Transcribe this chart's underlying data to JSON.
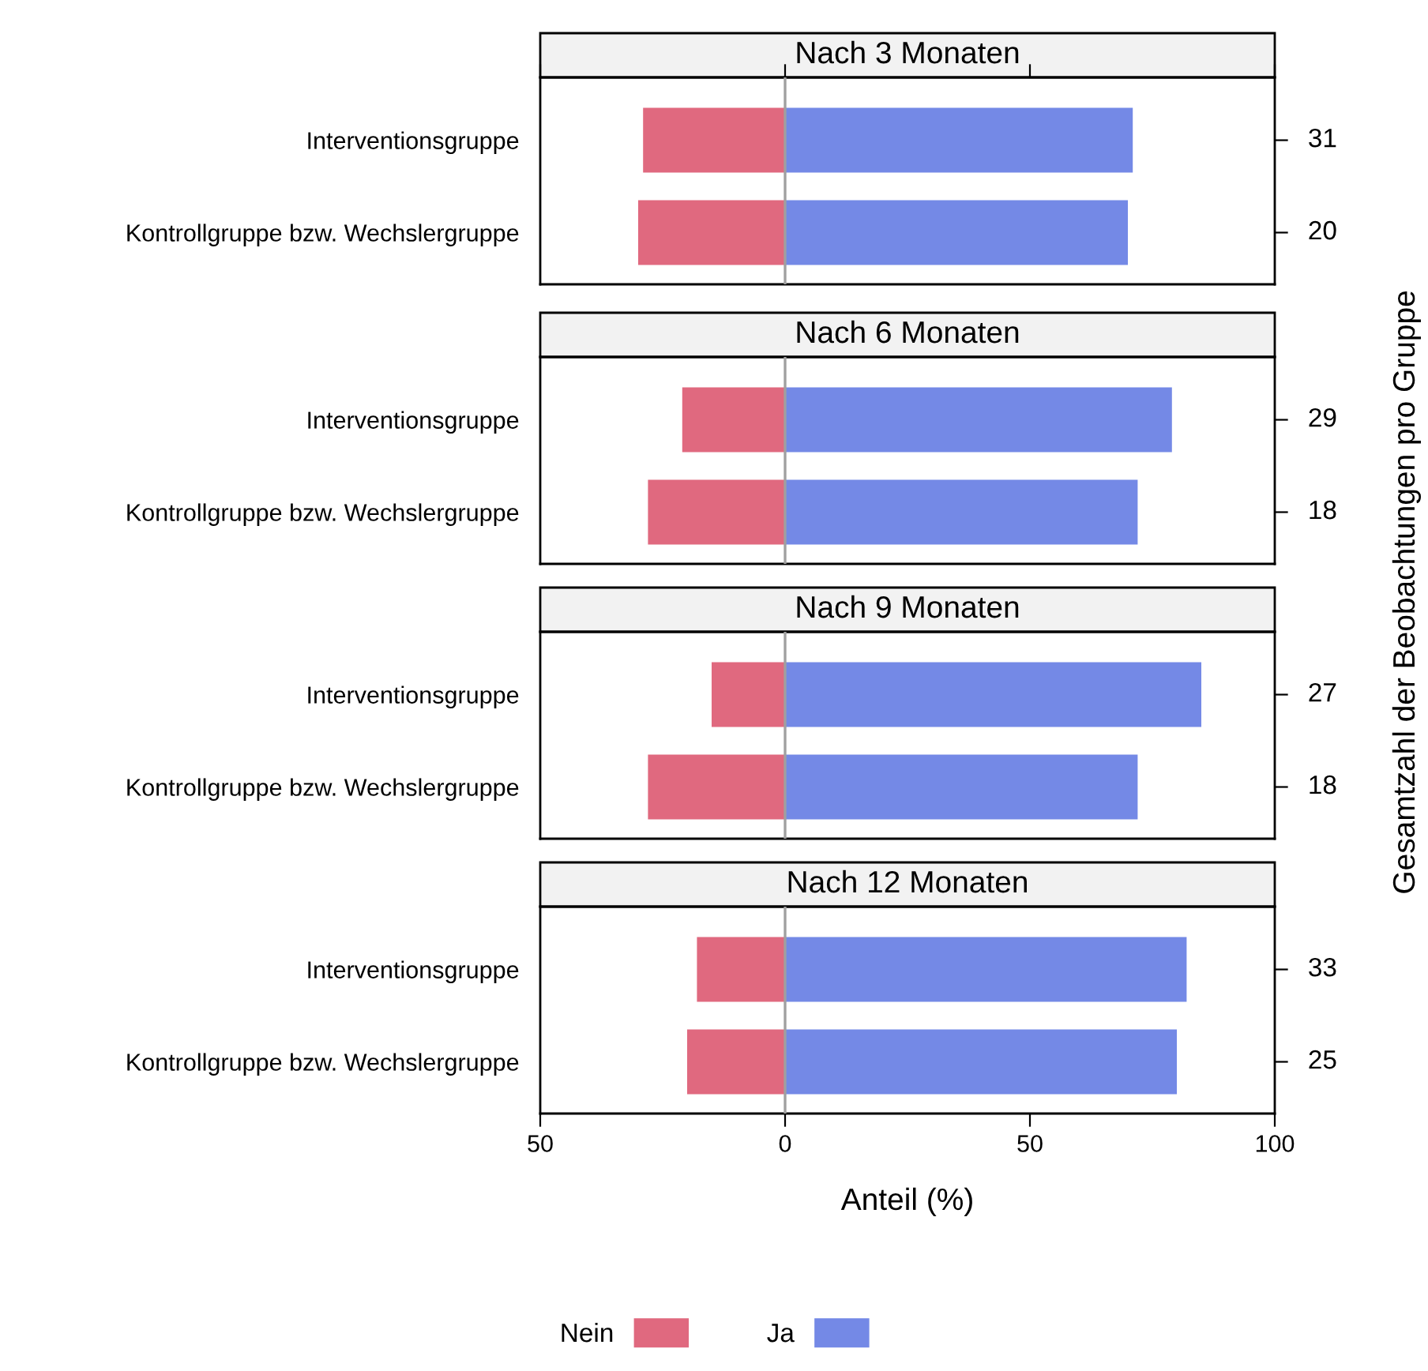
{
  "chart_data": [
    {
      "type": "bar",
      "orientation": "horizontal",
      "stacked": true,
      "title": "Nach 3 Monaten",
      "categories": [
        "Interventionsgruppe",
        "Kontrollgruppe bzw. Wechslergruppe"
      ],
      "series": [
        {
          "name": "Nein",
          "color": "#e0697f",
          "values": [
            -29,
            -30
          ]
        },
        {
          "name": "Ja",
          "color": "#7489e6",
          "values": [
            71,
            70
          ]
        }
      ],
      "xlim": [
        -50,
        100
      ],
      "xticks": [
        {
          "value": -50,
          "label": null
        },
        {
          "value": 0,
          "label": null
        },
        {
          "value": 50,
          "label": null
        },
        {
          "value": 100,
          "label": null
        }
      ],
      "tick_labels": "y",
      "ref_lines": [
        {
          "axis": "x",
          "value": 0,
          "color": "#a0a0a0"
        }
      ],
      "annotations": [
        "31",
        "20"
      ],
      "legend": "bottom"
    },
    {
      "type": "bar",
      "orientation": "horizontal",
      "stacked": true,
      "title": "Nach 6 Monaten",
      "categories": [
        "Interventionsgruppe",
        "Kontrollgruppe bzw. Wechslergruppe"
      ],
      "series": [
        {
          "color": "#e0697f",
          "values": [
            -21,
            -28
          ]
        },
        {
          "color": "#7489e6",
          "values": [
            79,
            72
          ]
        }
      ],
      "xlim": [
        -50,
        100
      ],
      "tick_labels": "y",
      "ref_lines": [
        {
          "axis": "x",
          "value": 0,
          "color": "#a0a0a0"
        }
      ],
      "annotations": [
        "29",
        "18"
      ]
    },
    {
      "type": "bar",
      "orientation": "horizontal",
      "stacked": true,
      "title": "Nach 9 Monaten",
      "categories": [
        "Interventionsgruppe",
        "Kontrollgruppe bzw. Wechslergruppe"
      ],
      "series": [
        {
          "color": "#e0697f",
          "values": [
            -15,
            -28
          ]
        },
        {
          "color": "#7489e6",
          "values": [
            85,
            72
          ]
        }
      ],
      "xlim": [
        -50,
        100
      ],
      "tick_labels": "y",
      "ref_lines": [
        {
          "axis": "x",
          "value": 0,
          "color": "#a0a0a0"
        }
      ],
      "annotations": [
        "27",
        "18"
      ]
    },
    {
      "type": "bar",
      "orientation": "horizontal",
      "stacked": true,
      "title": "Nach 12 Monaten",
      "categories": [
        "Interventionsgruppe",
        "Kontrollgruppe bzw. Wechslergruppe"
      ],
      "series": [
        {
          "color": "#e0697f",
          "values": [
            -18,
            -20
          ]
        },
        {
          "color": "#7489e6",
          "values": [
            82,
            80
          ]
        }
      ],
      "xlim": [
        -50,
        100
      ],
      "xticks": [
        {
          "value": -50,
          "label": "50"
        },
        0,
        50,
        100
      ],
      "ref_lines": [
        {
          "axis": "x",
          "value": 0,
          "color": "#a0a0a0"
        }
      ],
      "annotations": [
        "33",
        "25"
      ],
      "xlabel": "Anteil (%)",
      "y2label": "Gesamtzahl der Beobachtungen pro Gruppe"
    }
  ]
}
